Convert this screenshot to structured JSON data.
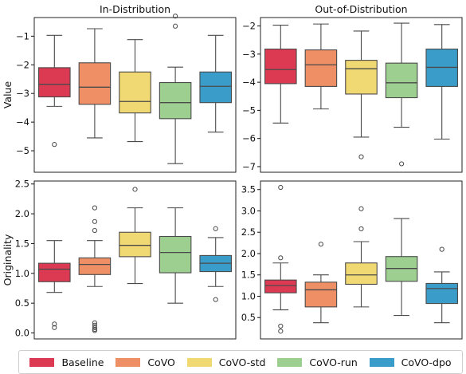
{
  "series_styles": [
    {
      "name": "Baseline",
      "color": "#dc3a52"
    },
    {
      "name": "CoVO",
      "color": "#ee8f66"
    },
    {
      "name": "CoVO-std",
      "color": "#f0d872"
    },
    {
      "name": "CoVO-run",
      "color": "#9dcf90"
    },
    {
      "name": "CoVO-dpo",
      "color": "#3a9cc9"
    }
  ],
  "chart_data": [
    {
      "type": "box",
      "title": "In-Distribution",
      "ylabel": "Value",
      "xlabel": "",
      "ylim": [
        -5.75,
        -0.35
      ],
      "yticks": [
        -5,
        -4,
        -3,
        -2,
        -1
      ],
      "grid": false,
      "series": [
        {
          "name": "Baseline",
          "whisker_low": -3.45,
          "q1": -3.12,
          "median": -2.68,
          "q3": -2.1,
          "whisker_high": -0.97,
          "outliers": [
            -4.78
          ]
        },
        {
          "name": "CoVO",
          "whisker_low": -4.55,
          "q1": -3.38,
          "median": -2.78,
          "q3": -1.93,
          "whisker_high": -0.74,
          "outliers": []
        },
        {
          "name": "CoVO-std",
          "whisker_low": -4.68,
          "q1": -3.68,
          "median": -3.28,
          "q3": -2.25,
          "whisker_high": -1.12,
          "outliers": []
        },
        {
          "name": "CoVO-run",
          "whisker_low": -5.45,
          "q1": -3.88,
          "median": -3.32,
          "q3": -2.62,
          "whisker_high": -2.08,
          "outliers": [
            -0.3,
            -0.65
          ]
        },
        {
          "name": "CoVO-dpo",
          "whisker_low": -4.35,
          "q1": -3.32,
          "median": -2.75,
          "q3": -2.25,
          "whisker_high": -0.97,
          "outliers": []
        }
      ]
    },
    {
      "type": "box",
      "title": "Out-of-Distribution",
      "ylabel": "",
      "xlabel": "",
      "ylim": [
        -7.2,
        -1.7
      ],
      "yticks": [
        -7,
        -6,
        -5,
        -4,
        -3,
        -2
      ],
      "grid": false,
      "series": [
        {
          "name": "Baseline",
          "whisker_low": -5.45,
          "q1": -4.05,
          "median": -3.55,
          "q3": -2.82,
          "whisker_high": -1.97,
          "outliers": []
        },
        {
          "name": "CoVO",
          "whisker_low": -4.95,
          "q1": -4.15,
          "median": -3.38,
          "q3": -2.85,
          "whisker_high": -1.93,
          "outliers": []
        },
        {
          "name": "CoVO-std",
          "whisker_low": -5.95,
          "q1": -4.42,
          "median": -3.52,
          "q3": -3.22,
          "whisker_high": -2.18,
          "outliers": [
            -6.65
          ]
        },
        {
          "name": "CoVO-run",
          "whisker_low": -5.6,
          "q1": -4.55,
          "median": -4.02,
          "q3": -3.32,
          "whisker_high": -1.9,
          "outliers": [
            -6.9
          ]
        },
        {
          "name": "CoVO-dpo",
          "whisker_low": -6.02,
          "q1": -4.15,
          "median": -3.47,
          "q3": -2.82,
          "whisker_high": -1.95,
          "outliers": []
        }
      ]
    },
    {
      "type": "box",
      "title": "",
      "ylabel": "Originality",
      "xlabel": "",
      "ylim": [
        -0.1,
        2.55
      ],
      "yticks": [
        0.0,
        0.5,
        1.0,
        1.5,
        2.0,
        2.5
      ],
      "tick_labels": [
        "0.0",
        "0.5",
        "1.0",
        "1.5",
        "2.0",
        "2.5"
      ],
      "grid": false,
      "series": [
        {
          "name": "Baseline",
          "whisker_low": 0.68,
          "q1": 0.86,
          "median": 1.07,
          "q3": 1.17,
          "whisker_high": 1.55,
          "outliers": [
            0.15,
            0.09
          ]
        },
        {
          "name": "CoVO",
          "whisker_low": 0.78,
          "q1": 0.98,
          "median": 1.15,
          "q3": 1.26,
          "whisker_high": 1.55,
          "outliers": [
            2.1,
            1.87,
            1.72,
            0.17,
            0.13,
            0.09,
            0.06,
            0.04
          ]
        },
        {
          "name": "CoVO-std",
          "whisker_low": 0.83,
          "q1": 1.28,
          "median": 1.47,
          "q3": 1.69,
          "whisker_high": 2.1,
          "outliers": [
            2.41
          ]
        },
        {
          "name": "CoVO-run",
          "whisker_low": 0.5,
          "q1": 1.01,
          "median": 1.35,
          "q3": 1.62,
          "whisker_high": 2.1,
          "outliers": []
        },
        {
          "name": "CoVO-dpo",
          "whisker_low": 0.78,
          "q1": 1.03,
          "median": 1.17,
          "q3": 1.3,
          "whisker_high": 1.6,
          "outliers": [
            1.75,
            0.56
          ]
        }
      ]
    },
    {
      "type": "box",
      "title": "",
      "ylabel": "",
      "xlabel": "",
      "ylim": [
        0.0,
        3.7
      ],
      "yticks": [
        0.5,
        1.0,
        1.5,
        2.0,
        2.5,
        3.0,
        3.5
      ],
      "tick_labels": [
        "0.5",
        "1.0",
        "1.5",
        "2.0",
        "2.5",
        "3.0",
        "3.5"
      ],
      "grid": false,
      "series": [
        {
          "name": "Baseline",
          "whisker_low": 0.68,
          "q1": 1.08,
          "median": 1.25,
          "q3": 1.38,
          "whisker_high": 1.78,
          "outliers": [
            3.55,
            1.9,
            0.3,
            0.18
          ]
        },
        {
          "name": "CoVO",
          "whisker_low": 0.38,
          "q1": 0.75,
          "median": 1.15,
          "q3": 1.33,
          "whisker_high": 1.5,
          "outliers": [
            2.22
          ]
        },
        {
          "name": "CoVO-std",
          "whisker_low": 0.75,
          "q1": 1.28,
          "median": 1.5,
          "q3": 1.78,
          "whisker_high": 2.28,
          "outliers": [
            3.05,
            2.58
          ]
        },
        {
          "name": "CoVO-run",
          "whisker_low": 0.55,
          "q1": 1.35,
          "median": 1.65,
          "q3": 1.93,
          "whisker_high": 2.82,
          "outliers": []
        },
        {
          "name": "CoVO-dpo",
          "whisker_low": 0.38,
          "q1": 0.83,
          "median": 1.18,
          "q3": 1.3,
          "whisker_high": 1.57,
          "outliers": [
            2.1
          ]
        }
      ]
    }
  ]
}
